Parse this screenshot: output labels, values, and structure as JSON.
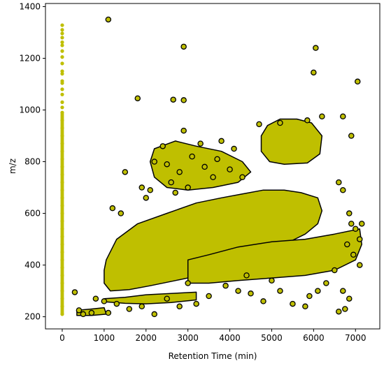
{
  "chart_data": {
    "type": "scatter",
    "title": "",
    "xlabel": "Retention Time (min)",
    "ylabel": "m/z",
    "xlim": [
      -400,
      7580
    ],
    "ylim": [
      153,
      1412
    ],
    "xticks": [
      0,
      1000,
      2000,
      3000,
      4000,
      5000,
      6000,
      7000
    ],
    "yticks": [
      200,
      400,
      600,
      800,
      1000,
      1200,
      1400
    ],
    "grid": false,
    "legend": "none",
    "colors": {
      "marker_fill": "#bfbf00",
      "marker_edge": "#000000"
    },
    "series": [
      {
        "marker": "small-dots-no-edge",
        "points": [
          [
            0,
            1328
          ],
          [
            0,
            1310
          ],
          [
            0,
            1296
          ],
          [
            0,
            1280
          ],
          [
            0,
            1262
          ],
          [
            0,
            1250
          ],
          [
            0,
            1228
          ],
          [
            0,
            1205
          ],
          [
            0,
            1180
          ],
          [
            0,
            1150
          ],
          [
            0,
            1140
          ],
          [
            0,
            1112
          ],
          [
            0,
            1104
          ],
          [
            0,
            1080
          ],
          [
            0,
            1060
          ],
          [
            0,
            1030
          ],
          [
            0,
            1010
          ],
          [
            0,
            990
          ],
          [
            0,
            960
          ],
          [
            0,
            930
          ],
          [
            0,
            900
          ],
          [
            0,
            870
          ],
          [
            0,
            840
          ],
          [
            0,
            810
          ],
          [
            0,
            780
          ],
          [
            0,
            750
          ],
          [
            0,
            720
          ],
          [
            0,
            690
          ],
          [
            0,
            660
          ],
          [
            0,
            630
          ],
          [
            0,
            600
          ],
          [
            0,
            570
          ],
          [
            0,
            540
          ],
          [
            0,
            510
          ],
          [
            0,
            480
          ],
          [
            0,
            450
          ],
          [
            0,
            420
          ],
          [
            0,
            390
          ],
          [
            0,
            360
          ],
          [
            0,
            330
          ],
          [
            0,
            300
          ],
          [
            0,
            270
          ],
          [
            0,
            240
          ],
          [
            0,
            210
          ]
        ]
      },
      {
        "marker": "circles-black-edge",
        "points": [
          [
            1100,
            1350
          ],
          [
            2900,
            1245
          ],
          [
            6050,
            1240
          ],
          [
            6000,
            1145
          ],
          [
            7050,
            1110
          ],
          [
            1800,
            1045
          ],
          [
            2900,
            1038
          ],
          [
            2650,
            1040
          ],
          [
            2900,
            920
          ],
          [
            6200,
            975
          ],
          [
            6900,
            900
          ],
          [
            4700,
            945
          ],
          [
            5200,
            950
          ],
          [
            6700,
            975
          ],
          [
            5850,
            960
          ],
          [
            2200,
            800
          ],
          [
            2500,
            790
          ],
          [
            2800,
            760
          ],
          [
            3100,
            820
          ],
          [
            3400,
            780
          ],
          [
            3700,
            810
          ],
          [
            4000,
            770
          ],
          [
            4300,
            740
          ],
          [
            2600,
            720
          ],
          [
            3000,
            700
          ],
          [
            3600,
            740
          ],
          [
            4100,
            850
          ],
          [
            2400,
            860
          ],
          [
            3300,
            870
          ],
          [
            3800,
            880
          ],
          [
            1500,
            760
          ],
          [
            1900,
            700
          ],
          [
            2100,
            690
          ],
          [
            2000,
            660
          ],
          [
            2700,
            680
          ],
          [
            1200,
            620
          ],
          [
            1400,
            600
          ],
          [
            6600,
            720
          ],
          [
            6700,
            690
          ],
          [
            6850,
            600
          ],
          [
            6900,
            560
          ],
          [
            7000,
            540
          ],
          [
            7100,
            500
          ],
          [
            7150,
            560
          ],
          [
            6800,
            480
          ],
          [
            6950,
            440
          ],
          [
            7100,
            400
          ],
          [
            6500,
            380
          ],
          [
            6300,
            330
          ],
          [
            6100,
            300
          ],
          [
            5900,
            280
          ],
          [
            6700,
            300
          ],
          [
            6850,
            270
          ],
          [
            6750,
            230
          ],
          [
            6600,
            220
          ],
          [
            5500,
            250
          ],
          [
            5800,
            240
          ],
          [
            4800,
            260
          ],
          [
            4500,
            290
          ],
          [
            4200,
            300
          ],
          [
            3900,
            320
          ],
          [
            3500,
            280
          ],
          [
            3200,
            250
          ],
          [
            2800,
            240
          ],
          [
            2500,
            270
          ],
          [
            2200,
            210
          ],
          [
            1900,
            240
          ],
          [
            1600,
            230
          ],
          [
            1300,
            250
          ],
          [
            1000,
            260
          ],
          [
            800,
            270
          ],
          [
            500,
            210
          ],
          [
            400,
            225
          ],
          [
            300,
            295
          ],
          [
            700,
            215
          ],
          [
            1100,
            215
          ],
          [
            5200,
            300
          ],
          [
            5000,
            340
          ],
          [
            4400,
            360
          ],
          [
            3000,
            330
          ]
        ]
      }
    ]
  }
}
